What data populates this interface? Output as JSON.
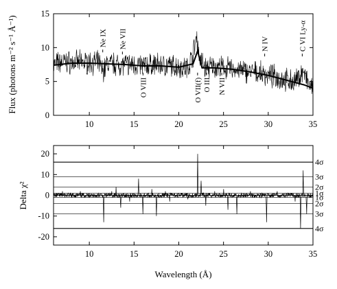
{
  "chart_data": [
    {
      "type": "line",
      "panel": "spectrum",
      "xlabel": "",
      "ylabel": "Flux (photons m⁻² s⁻¹ Å⁻¹)",
      "xlim": [
        6,
        35
      ],
      "ylim": [
        0,
        15
      ],
      "x_ticks": [
        10,
        15,
        20,
        25,
        30,
        35
      ],
      "y_ticks": [
        0,
        5,
        10,
        15
      ],
      "series": [
        {
          "role": "data",
          "x": [
            6.0,
            7.0,
            8.0,
            9.0,
            10.0,
            11.0,
            11.5,
            12.0,
            13.0,
            14.0,
            15.0,
            16.0,
            17.0,
            18.0,
            19.0,
            20.0,
            21.0,
            21.6,
            22.0,
            22.3,
            23.0,
            24.0,
            25.0,
            26.0,
            27.0,
            28.0,
            29.0,
            30.0,
            31.0,
            32.0,
            33.0,
            33.9,
            34.5,
            35.0
          ],
          "y": [
            7.5,
            7.9,
            7.8,
            7.8,
            7.8,
            7.8,
            6.5,
            7.6,
            7.6,
            7.5,
            7.5,
            7.3,
            7.5,
            7.4,
            7.3,
            7.2,
            7.0,
            9.0,
            11.8,
            8.5,
            7.0,
            7.2,
            7.0,
            6.8,
            6.6,
            6.4,
            6.2,
            5.9,
            5.6,
            5.2,
            4.9,
            6.5,
            4.5,
            3.8
          ]
        },
        {
          "role": "model",
          "x": [
            6.0,
            8.0,
            10.0,
            12.0,
            14.0,
            16.0,
            18.0,
            20.0,
            21.6,
            22.1,
            22.6,
            24.0,
            26.0,
            28.0,
            30.0,
            32.0,
            34.0,
            35.0
          ],
          "y": [
            7.4,
            7.7,
            7.7,
            7.6,
            7.5,
            7.3,
            7.3,
            7.1,
            7.6,
            9.5,
            7.0,
            7.0,
            6.8,
            6.4,
            5.9,
            5.2,
            4.5,
            4.0
          ]
        }
      ],
      "annotations": [
        {
          "label": "Ne IX",
          "x": 11.5,
          "y": 9.3,
          "position": "above"
        },
        {
          "label": "Ne VII",
          "x": 13.7,
          "y": 9.0,
          "position": "above"
        },
        {
          "label": "O VIII",
          "x": 16.0,
          "y": 6.3,
          "position": "below"
        },
        {
          "label": "O VII(f)",
          "x": 22.1,
          "y": 6.3,
          "position": "below"
        },
        {
          "label": "O III",
          "x": 23.1,
          "y": 6.3,
          "position": "below"
        },
        {
          "label": "N VII",
          "x": 24.8,
          "y": 6.3,
          "position": "below"
        },
        {
          "label": "N IV",
          "x": 29.6,
          "y": 8.7,
          "position": "above"
        },
        {
          "label": "C VI Ly-α",
          "x": 33.8,
          "y": 8.7,
          "position": "above"
        }
      ]
    },
    {
      "type": "line",
      "panel": "residuals",
      "xlabel": "Wavelength (Å)",
      "ylabel": "Delta χ²",
      "xlim": [
        6,
        35
      ],
      "ylim": [
        -24,
        24
      ],
      "x_ticks": [
        10,
        15,
        20,
        25,
        30,
        35
      ],
      "y_ticks": [
        -20,
        -10,
        0,
        10,
        20
      ],
      "sigma_levels": [
        {
          "label": "4σ",
          "value": 16
        },
        {
          "label": "3σ",
          "value": 9
        },
        {
          "label": "2σ",
          "value": 4
        },
        {
          "label": "1σ",
          "value": 1
        },
        {
          "label": "1σ",
          "value": -1
        },
        {
          "label": "2σ",
          "value": -4
        },
        {
          "label": "3σ",
          "value": -9
        },
        {
          "label": "4σ",
          "value": -16
        }
      ],
      "series": [
        {
          "role": "residual",
          "x": [
            6.0,
            7.0,
            8.0,
            9.0,
            10.0,
            11.0,
            11.6,
            12.5,
            13.0,
            13.5,
            14.5,
            15.5,
            16.0,
            17.0,
            17.5,
            18.5,
            19.0,
            20.0,
            21.0,
            22.1,
            22.5,
            23.0,
            24.0,
            25.0,
            25.5,
            26.5,
            27.0,
            28.0,
            29.8,
            30.5,
            31.0,
            32.0,
            33.0,
            33.6,
            33.9,
            34.3,
            35.0
          ],
          "y": [
            0,
            2,
            -1,
            2,
            1,
            -1,
            -13,
            2,
            4,
            -6,
            -3,
            8,
            -9,
            3,
            -10,
            2,
            -3,
            1,
            -2,
            20,
            7,
            -5,
            2,
            3,
            -7,
            -9,
            1,
            2,
            -13,
            1,
            2,
            1,
            -3,
            -16,
            12,
            -9,
            1
          ]
        }
      ]
    }
  ]
}
